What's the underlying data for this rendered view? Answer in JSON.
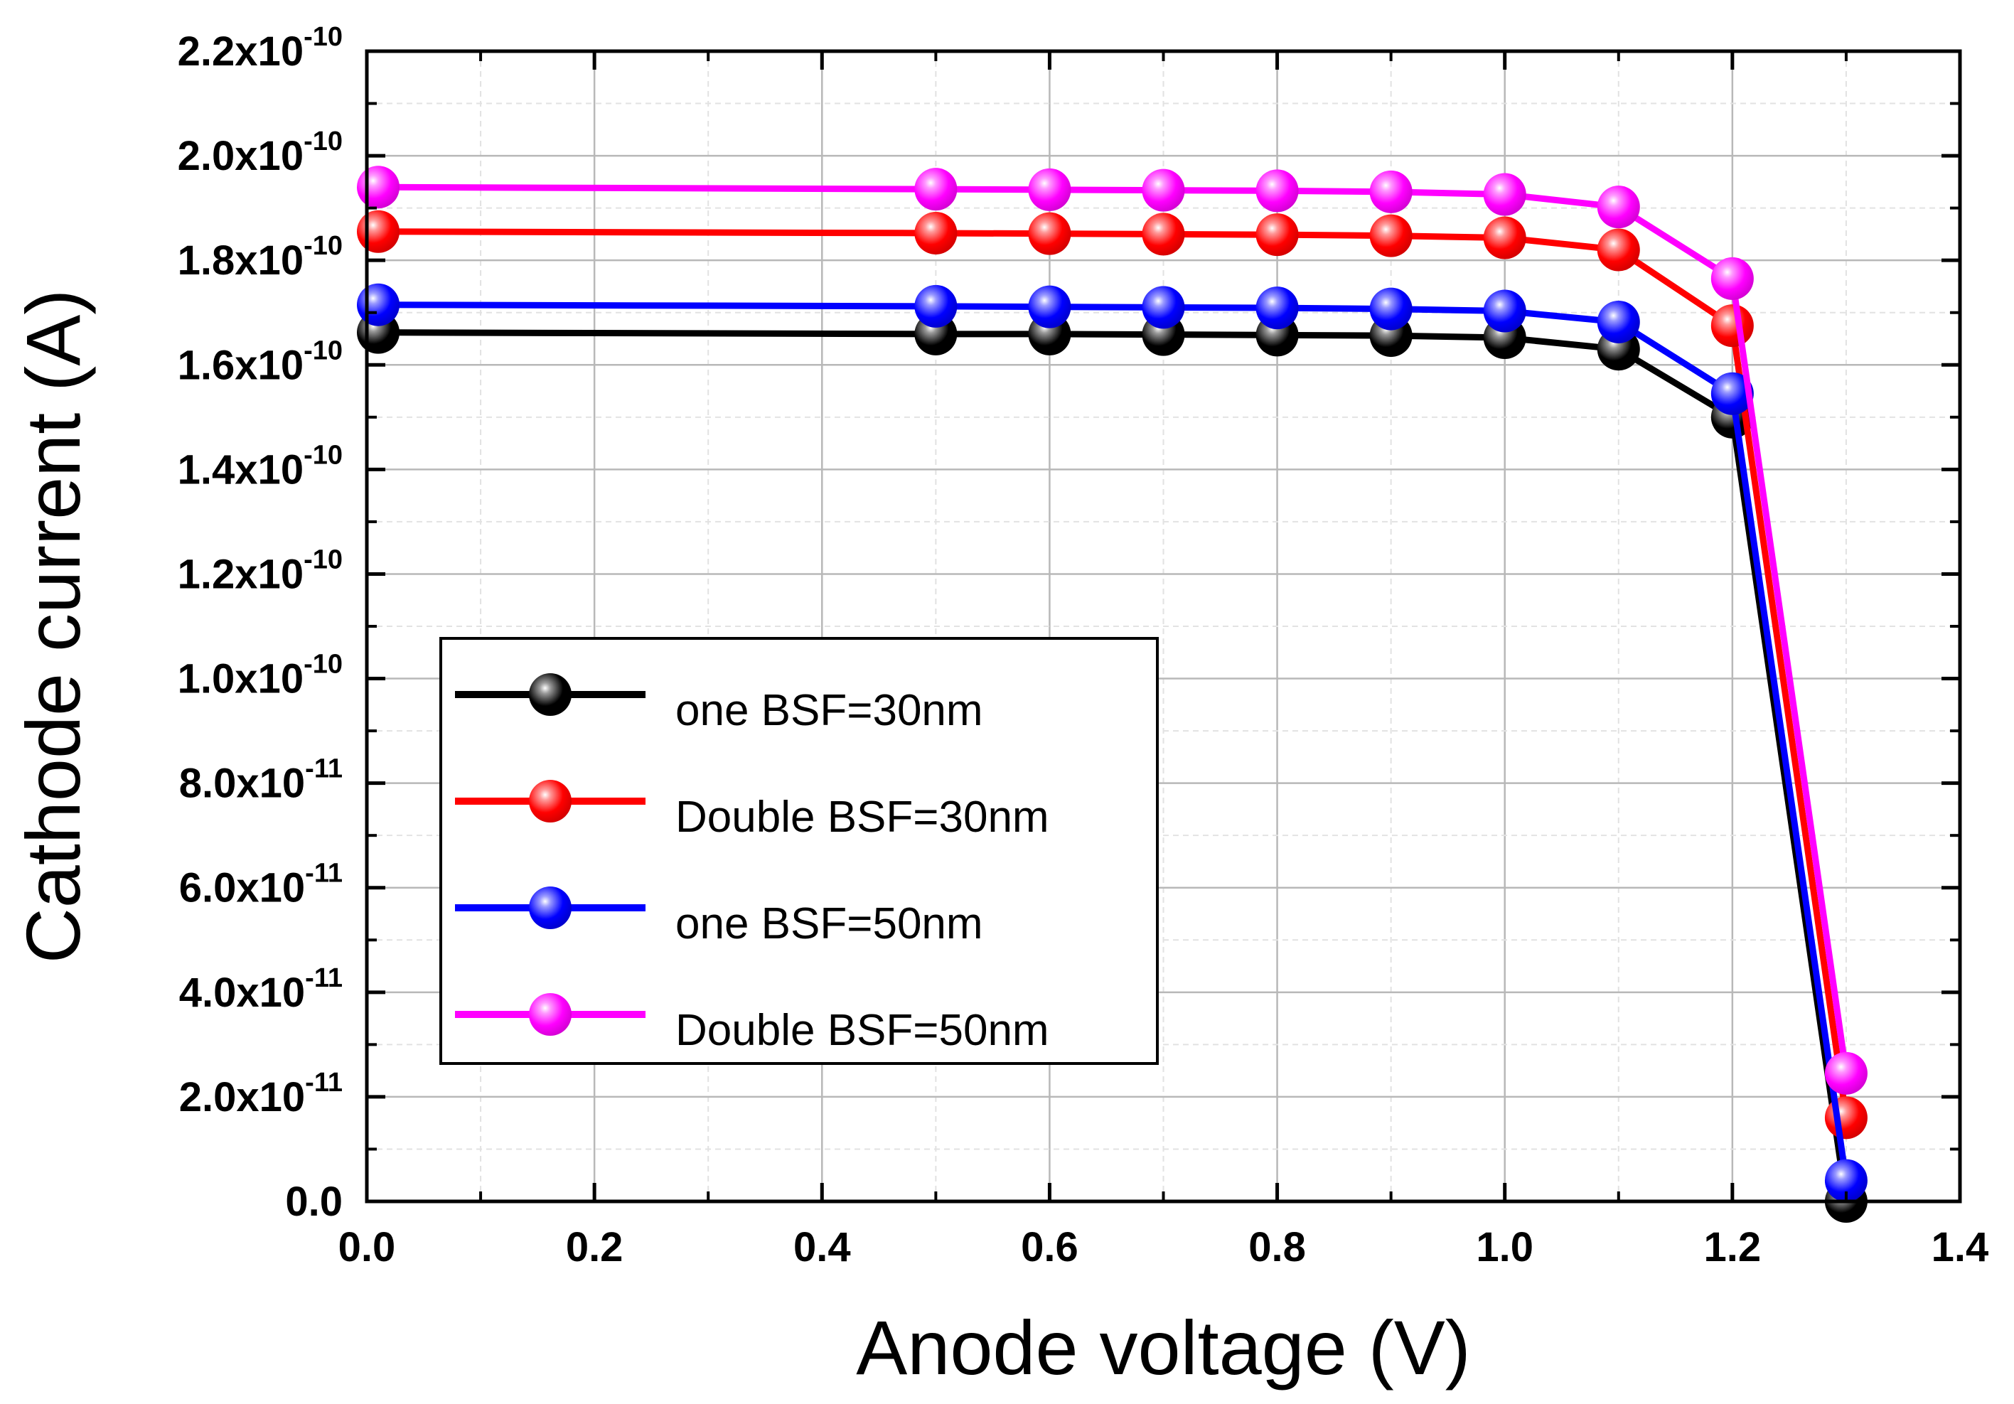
{
  "chart_data": {
    "type": "line",
    "xlabel": "Anode voltage (V)",
    "ylabel": "Cathode current (A)",
    "xlim": [
      0.0,
      1.4
    ],
    "ylim": [
      0,
      2.2e-10
    ],
    "grid": true,
    "legend_position": "lower-left",
    "x_ticks": [
      {
        "value": 0.0,
        "label": "0.0"
      },
      {
        "value": 0.2,
        "label": "0.2"
      },
      {
        "value": 0.4,
        "label": "0.4"
      },
      {
        "value": 0.6,
        "label": "0.6"
      },
      {
        "value": 0.8,
        "label": "0.8"
      },
      {
        "value": 1.0,
        "label": "1.0"
      },
      {
        "value": 1.2,
        "label": "1.2"
      },
      {
        "value": 1.4,
        "label": "1.4"
      }
    ],
    "y_ticks": [
      {
        "value": 0,
        "mantissa": "0.0",
        "exponent": ""
      },
      {
        "value": 2e-11,
        "mantissa": "2.0x10",
        "exponent": "-11"
      },
      {
        "value": 4e-11,
        "mantissa": "4.0x10",
        "exponent": "-11"
      },
      {
        "value": 6e-11,
        "mantissa": "6.0x10",
        "exponent": "-11"
      },
      {
        "value": 8e-11,
        "mantissa": "8.0x10",
        "exponent": "-11"
      },
      {
        "value": 1e-10,
        "mantissa": "1.0x10",
        "exponent": "-10"
      },
      {
        "value": 1.2e-10,
        "mantissa": "1.2x10",
        "exponent": "-10"
      },
      {
        "value": 1.4e-10,
        "mantissa": "1.4x10",
        "exponent": "-10"
      },
      {
        "value": 1.6e-10,
        "mantissa": "1.6x10",
        "exponent": "-10"
      },
      {
        "value": 1.8e-10,
        "mantissa": "1.8x10",
        "exponent": "-10"
      },
      {
        "value": 2e-10,
        "mantissa": "2.0x10",
        "exponent": "-10"
      },
      {
        "value": 2.2e-10,
        "mantissa": "2.2x10",
        "exponent": "-10"
      }
    ],
    "x": [
      0.01,
      0.5,
      0.6,
      0.7,
      0.8,
      0.9,
      1.0,
      1.1,
      1.2,
      1.3
    ],
    "series": [
      {
        "name": "one BSF=30nm",
        "color": "#000000",
        "values": [
          1.662e-10,
          1.659e-10,
          1.659e-10,
          1.658e-10,
          1.657e-10,
          1.656e-10,
          1.652e-10,
          1.63e-10,
          1.5e-10,
          0
        ]
      },
      {
        "name": "Double BSF=30nm",
        "color": "#ff0000",
        "values": [
          1.855e-10,
          1.852e-10,
          1.851e-10,
          1.85e-10,
          1.849e-10,
          1.847e-10,
          1.843e-10,
          1.82e-10,
          1.675e-10,
          1.6e-11
        ]
      },
      {
        "name": "one BSF=50nm",
        "color": "#0000ff",
        "values": [
          1.715e-10,
          1.712e-10,
          1.711e-10,
          1.71e-10,
          1.709e-10,
          1.707e-10,
          1.703e-10,
          1.682e-10,
          1.545e-10,
          4e-12
        ]
      },
      {
        "name": "Double BSF=50nm",
        "color": "#ff00ff",
        "values": [
          1.94e-10,
          1.936e-10,
          1.935e-10,
          1.934e-10,
          1.933e-10,
          1.931e-10,
          1.926e-10,
          1.902e-10,
          1.765e-10,
          2.45e-11
        ]
      }
    ]
  }
}
